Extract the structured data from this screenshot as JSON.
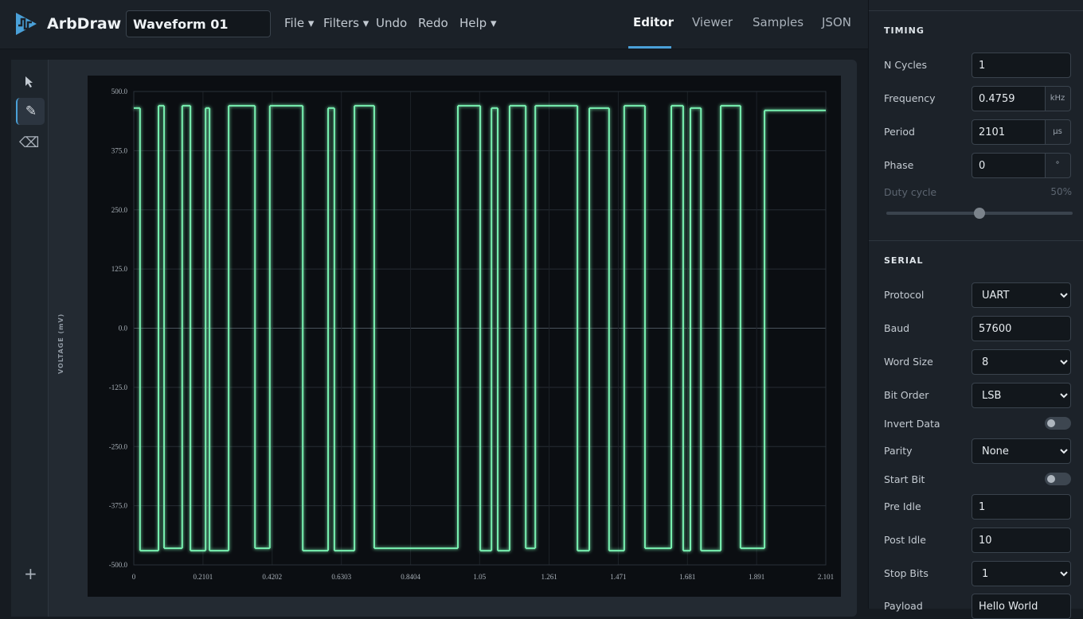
{
  "header": {
    "app_name": "ArbDraw",
    "file_name": "Waveform 01",
    "menu": [
      "File ▾",
      "Filters ▾",
      "Undo",
      "Redo",
      "Help ▾"
    ],
    "tabs": [
      "Editor",
      "Viewer",
      "Samples",
      "JSON"
    ]
  },
  "timing": {
    "title": "TIMING",
    "fields": [
      {
        "label": "N Cycles",
        "value": "1"
      },
      {
        "label": "Frequency",
        "value": "0.4759",
        "unit": "kHz"
      },
      {
        "label": "Period",
        "value": "2101",
        "unit": "µs"
      },
      {
        "label": "Phase",
        "value": "0",
        "unit": "°"
      }
    ],
    "duty_cycle": {
      "label": "Duty cycle",
      "value": "50%"
    }
  },
  "serial": {
    "title": "SERIAL",
    "fields": [
      {
        "label": "Protocol",
        "value": "UART",
        "kind": "select"
      },
      {
        "label": "Baud",
        "value": "57600",
        "kind": "input"
      },
      {
        "label": "Word Size",
        "value": "8",
        "kind": "select"
      },
      {
        "label": "Bit Order",
        "value": "LSB",
        "kind": "select"
      },
      {
        "label": "Invert Data",
        "kind": "toggle"
      },
      {
        "label": "Parity",
        "value": "None",
        "kind": "select"
      },
      {
        "label": "Start Bit",
        "kind": "toggle"
      },
      {
        "label": "Pre Idle",
        "value": "1",
        "kind": "input"
      },
      {
        "label": "Post Idle",
        "value": "10",
        "kind": "input"
      },
      {
        "label": "Stop Bits",
        "value": "1",
        "kind": "select"
      },
      {
        "label": "Payload",
        "value": "Hello World",
        "kind": "input"
      }
    ]
  },
  "chart_data": {
    "type": "line",
    "step": "post",
    "y_label": "VOLTAGE (mV)",
    "x": [
      0,
      0.019,
      0.075,
      0.092,
      0.147,
      0.172,
      0.218,
      0.23,
      0.288,
      0.368,
      0.413,
      0.513,
      0.59,
      0.609,
      0.67,
      0.73,
      0.984,
      1.052,
      1.086,
      1.105,
      1.141,
      1.19,
      1.219,
      1.347,
      1.383,
      1.443,
      1.489,
      1.552,
      1.632,
      1.668,
      1.69,
      1.722,
      1.782,
      1.842,
      1.915
    ],
    "series": [
      {
        "color": "#78f0b0",
        "values": [
          465,
          -470,
          470,
          -465,
          470,
          -470,
          465,
          -470,
          470,
          -465,
          470,
          -470,
          465,
          -470,
          470,
          -465,
          470,
          -470,
          465,
          -470,
          470,
          -465,
          470,
          -470,
          465,
          -470,
          470,
          -465,
          470,
          -470,
          465,
          -470,
          470,
          -465,
          460
        ]
      }
    ],
    "xlim": [
      0,
      2.101
    ],
    "ylim": [
      -500,
      500
    ],
    "xticks": [
      0,
      0.2101,
      0.4202,
      0.6303,
      0.8404,
      1.05,
      1.261,
      1.471,
      1.681,
      1.891,
      2.101
    ],
    "yticks": [
      {
        "value": 500,
        "label": "500.0"
      },
      {
        "value": 375,
        "label": "375.0"
      },
      {
        "value": 250,
        "label": "250.0"
      },
      {
        "value": 125,
        "label": "125.0"
      },
      {
        "value": 0,
        "label": "0.0"
      },
      {
        "value": -125,
        "label": "-125.0"
      },
      {
        "value": -250,
        "label": "-250.0"
      },
      {
        "value": -375,
        "label": "-375.0"
      },
      {
        "value": -500,
        "label": "-500.0"
      }
    ],
    "grid": true
  }
}
